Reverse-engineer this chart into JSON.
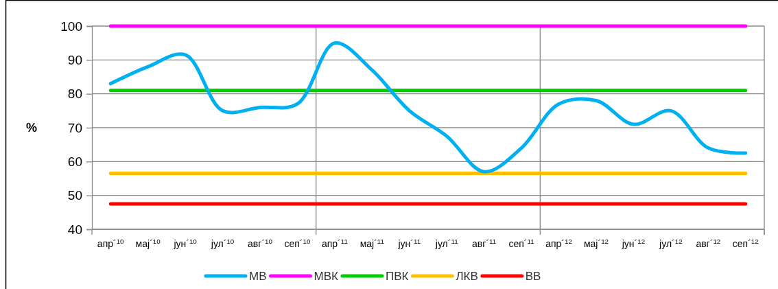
{
  "chart_data": {
    "type": "line",
    "ylabel": "%",
    "categories": [
      "апр´$^{10}$",
      "мај´$^{10}$",
      "јун´$^{10}$",
      "јул´$^{10}$",
      "авг´$^{10}$",
      "сеп´$^{10}$",
      "апр´$^{11}$",
      "мај´$^{11}$",
      "јун´$^{11}$",
      "јул´$^{11}$",
      "авг´$^{11}$",
      "сеп´$^{11}$",
      "апр´$^{12}$",
      "мај´$^{12}$",
      "јун´$^{12}$",
      "јул´$^{12}$",
      "авг´$^{12}$",
      "сеп´$^{12}$"
    ],
    "series": [
      {
        "name": "МВ",
        "color": "#00b0f0",
        "values": [
          83,
          88,
          91.5,
          75,
          76,
          77,
          95,
          87,
          75,
          67.5,
          57,
          64,
          77,
          78,
          71,
          75,
          64,
          62.5
        ]
      },
      {
        "name": "МВК",
        "color": "#ff00ff",
        "values": [
          100,
          100,
          100,
          100,
          100,
          100,
          100,
          100,
          100,
          100,
          100,
          100,
          100,
          100,
          100,
          100,
          100,
          100
        ]
      },
      {
        "name": "ПВК",
        "color": "#00cc00",
        "values": [
          81,
          81,
          81,
          81,
          81,
          81,
          81,
          81,
          81,
          81,
          81,
          81,
          81,
          81,
          81,
          81,
          81,
          81
        ]
      },
      {
        "name": "ЛКВ",
        "color": "#ffc000",
        "values": [
          56.5,
          56.5,
          56.5,
          56.5,
          56.5,
          56.5,
          56.5,
          56.5,
          56.5,
          56.5,
          56.5,
          56.5,
          56.5,
          56.5,
          56.5,
          56.5,
          56.5,
          56.5
        ]
      },
      {
        "name": "ВВ",
        "color": "#ff0000",
        "values": [
          47.5,
          47.5,
          47.5,
          47.5,
          47.5,
          47.5,
          47.5,
          47.5,
          47.5,
          47.5,
          47.5,
          47.5,
          47.5,
          47.5,
          47.5,
          47.5,
          47.5,
          47.5
        ]
      }
    ],
    "ylim": [
      40,
      100
    ],
    "yticks": [
      40,
      50,
      60,
      70,
      80,
      90,
      100
    ],
    "grid": true,
    "legend": "bottom",
    "marker": "none",
    "line_style": "solid"
  }
}
